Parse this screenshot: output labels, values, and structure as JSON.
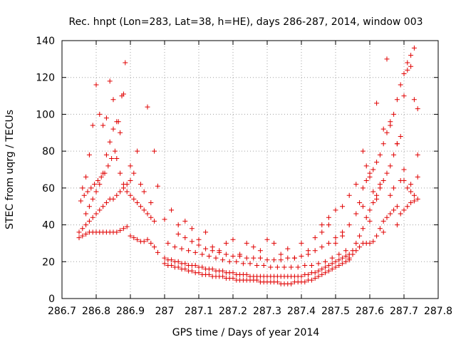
{
  "chart_data": {
    "type": "scatter",
    "title": "Rec. hnpt (Lon=283, Lat=38, h=HE), days 286-287, 2014, window 003",
    "xlabel": "GPS time / Days of year 2014",
    "ylabel": "STEC from uqrg / TECUs",
    "xlim": [
      286.7,
      287.8
    ],
    "ylim": [
      0,
      140
    ],
    "xticks": [
      "286.7",
      "286.8",
      "286.9",
      "287",
      "287.1",
      "287.2",
      "287.3",
      "287.4",
      "287.5",
      "287.6",
      "287.7",
      "287.8"
    ],
    "yticks": [
      "0",
      "20",
      "40",
      "60",
      "80",
      "100",
      "120",
      "140"
    ],
    "grid": true,
    "marker": "+",
    "color": "#e00000",
    "series": [
      {
        "x": [
          286.75,
          286.76,
          286.77,
          286.78,
          286.79,
          286.8,
          286.81,
          286.82,
          286.83,
          286.84,
          286.85,
          286.86,
          286.87,
          286.88,
          286.89,
          286.9,
          286.91,
          286.92,
          286.93,
          286.94,
          286.95,
          286.96,
          286.97,
          286.98
        ],
        "y": [
          33,
          34,
          35,
          36,
          36,
          36,
          36,
          36,
          36,
          36,
          36,
          36,
          37,
          38,
          39,
          34,
          33,
          32,
          31,
          31,
          32,
          30,
          28,
          25
        ]
      },
      {
        "x": [
          286.75,
          286.76,
          286.77,
          286.78,
          286.79,
          286.8,
          286.81,
          286.82,
          286.83,
          286.84,
          286.85,
          286.86,
          286.87,
          286.88,
          286.89,
          286.9
        ],
        "y": [
          36,
          38,
          40,
          42,
          44,
          46,
          48,
          50,
          52,
          54,
          54,
          56,
          58,
          60,
          62,
          64
        ]
      },
      {
        "x": [
          286.755,
          286.765,
          286.775,
          286.785,
          286.795,
          286.805,
          286.815,
          286.825,
          286.835,
          286.845,
          286.855,
          286.865,
          286.875,
          286.885
        ],
        "y": [
          53,
          56,
          58,
          60,
          62,
          64,
          66,
          68,
          72,
          76,
          80,
          96,
          110,
          128
        ]
      },
      {
        "x": [
          286.76,
          286.77,
          286.78,
          286.79,
          286.8,
          286.81,
          286.82,
          286.83,
          286.84,
          286.85,
          286.86,
          286.87,
          286.88
        ],
        "y": [
          60,
          66,
          78,
          94,
          116,
          100,
          94,
          98,
          118,
          108,
          96,
          90,
          111
        ]
      },
      {
        "x": [
          286.77,
          286.78,
          286.79,
          286.8,
          286.81,
          286.82,
          286.83,
          286.84,
          286.85,
          286.86,
          286.87,
          286.88,
          286.89,
          286.9,
          286.91,
          286.92,
          286.93,
          286.94,
          286.95,
          286.96,
          286.97
        ],
        "y": [
          46,
          50,
          54,
          58,
          62,
          68,
          78,
          85,
          92,
          76,
          68,
          62,
          58,
          56,
          54,
          52,
          50,
          48,
          46,
          44,
          42
        ]
      },
      {
        "x": [
          286.9,
          286.91,
          286.92,
          286.93,
          286.94,
          286.95,
          286.96,
          286.97,
          286.98
        ],
        "y": [
          72,
          68,
          80,
          62,
          58,
          104,
          52,
          80,
          61
        ]
      },
      {
        "x": [
          287.0,
          287.01,
          287.02,
          287.03,
          287.04,
          287.05,
          287.06,
          287.07,
          287.08,
          287.09,
          287.1,
          287.11,
          287.12,
          287.13,
          287.14,
          287.15,
          287.16,
          287.17,
          287.18,
          287.19,
          287.2,
          287.21,
          287.22,
          287.23,
          287.24,
          287.25,
          287.26,
          287.27,
          287.28,
          287.29,
          287.3,
          287.31,
          287.32,
          287.33,
          287.34,
          287.35,
          287.36,
          287.37,
          287.38,
          287.39,
          287.4,
          287.41,
          287.42,
          287.43,
          287.44,
          287.45,
          287.46,
          287.47,
          287.48,
          287.49,
          287.5,
          287.51,
          287.52,
          287.53,
          287.54
        ],
        "y": [
          19,
          18,
          18,
          17,
          17,
          16,
          16,
          15,
          15,
          14,
          14,
          13,
          13,
          13,
          12,
          12,
          12,
          12,
          11,
          11,
          11,
          10,
          10,
          10,
          10,
          10,
          10,
          10,
          9,
          9,
          9,
          9,
          9,
          9,
          8,
          8,
          8,
          8,
          9,
          9,
          9,
          9,
          10,
          10,
          11,
          12,
          13,
          14,
          15,
          16,
          17,
          18,
          19,
          20,
          21
        ]
      },
      {
        "x": [
          287.0,
          287.01,
          287.02,
          287.03,
          287.04,
          287.05,
          287.06,
          287.07,
          287.08,
          287.09,
          287.1,
          287.11,
          287.12,
          287.13,
          287.14,
          287.15,
          287.16,
          287.17,
          287.18,
          287.19,
          287.2,
          287.21,
          287.22,
          287.23,
          287.24,
          287.25,
          287.26,
          287.27,
          287.28,
          287.29,
          287.3,
          287.31,
          287.32,
          287.33,
          287.34,
          287.35,
          287.36,
          287.37,
          287.38,
          287.39,
          287.4,
          287.41,
          287.42,
          287.43,
          287.44,
          287.45,
          287.46,
          287.47,
          287.48,
          287.49,
          287.5,
          287.51,
          287.52,
          287.53,
          287.54
        ],
        "y": [
          22,
          21,
          21,
          20,
          20,
          19,
          19,
          18,
          18,
          18,
          17,
          17,
          16,
          16,
          16,
          15,
          15,
          15,
          14,
          14,
          14,
          13,
          13,
          13,
          13,
          12,
          12,
          12,
          12,
          12,
          12,
          12,
          12,
          12,
          12,
          12,
          12,
          12,
          12,
          12,
          12,
          13,
          13,
          14,
          14,
          15,
          16,
          17,
          18,
          19,
          20,
          21,
          22,
          23,
          24
        ]
      },
      {
        "x": [
          287.01,
          287.03,
          287.05,
          287.07,
          287.09,
          287.11,
          287.13,
          287.15,
          287.17,
          287.19,
          287.21,
          287.23,
          287.25,
          287.27,
          287.29,
          287.31,
          287.33,
          287.35,
          287.37,
          287.39,
          287.41,
          287.43,
          287.45,
          287.47,
          287.49,
          287.51,
          287.53
        ],
        "y": [
          30,
          28,
          27,
          26,
          25,
          24,
          23,
          22,
          21,
          20,
          20,
          19,
          19,
          18,
          18,
          17,
          17,
          17,
          17,
          17,
          18,
          18,
          19,
          20,
          22,
          24,
          26
        ]
      },
      {
        "x": [
          287.0,
          287.02,
          287.04,
          287.06,
          287.08,
          287.1,
          287.12,
          287.14,
          287.16,
          287.18,
          287.2,
          287.22,
          287.24,
          287.26,
          287.28,
          287.3,
          287.32,
          287.34,
          287.36,
          287.38,
          287.4,
          287.42,
          287.44,
          287.46,
          287.48,
          287.5,
          287.52,
          287.54
        ],
        "y": [
          43,
          48,
          40,
          42,
          38,
          32,
          36,
          28,
          26,
          30,
          32,
          24,
          30,
          28,
          26,
          32,
          30,
          24,
          27,
          22,
          30,
          26,
          33,
          40,
          44,
          48,
          50,
          56
        ]
      },
      {
        "x": [
          287.04,
          287.06,
          287.08,
          287.1,
          287.12,
          287.14,
          287.16,
          287.18,
          287.2,
          287.22,
          287.24,
          287.26,
          287.28,
          287.3,
          287.32,
          287.34,
          287.36,
          287.38,
          287.4,
          287.42,
          287.44,
          287.46,
          287.48,
          287.5,
          287.52
        ],
        "y": [
          35,
          33,
          31,
          29,
          27,
          26,
          25,
          24,
          23,
          23,
          22,
          22,
          22,
          21,
          21,
          21,
          22,
          22,
          23,
          24,
          26,
          28,
          30,
          33,
          36
        ]
      },
      {
        "x": [
          287.54,
          287.55,
          287.56,
          287.57,
          287.58,
          287.59,
          287.6,
          287.61,
          287.62,
          287.63,
          287.64,
          287.65,
          287.66,
          287.67,
          287.68,
          287.69,
          287.7,
          287.71,
          287.72,
          287.73,
          287.74
        ],
        "y": [
          22,
          24,
          26,
          28,
          30,
          30,
          30,
          31,
          34,
          38,
          42,
          44,
          46,
          48,
          50,
          46,
          48,
          50,
          52,
          53,
          54
        ]
      },
      {
        "x": [
          287.55,
          287.56,
          287.57,
          287.58,
          287.59,
          287.6,
          287.61,
          287.62,
          287.63,
          287.64,
          287.65,
          287.66,
          287.67,
          287.68,
          287.69,
          287.7,
          287.71,
          287.72,
          287.73
        ],
        "y": [
          26,
          30,
          34,
          38,
          44,
          48,
          52,
          56,
          60,
          64,
          68,
          72,
          78,
          84,
          88,
          64,
          60,
          58,
          56
        ]
      },
      {
        "x": [
          287.56,
          287.57,
          287.58,
          287.59,
          287.6,
          287.61,
          287.62,
          287.63,
          287.64,
          287.65,
          287.66,
          287.67,
          287.68,
          287.69,
          287.7,
          287.71,
          287.72,
          287.73,
          287.74
        ],
        "y": [
          46,
          52,
          60,
          64,
          68,
          70,
          74,
          78,
          84,
          90,
          96,
          100,
          108,
          116,
          122,
          128,
          132,
          136,
          103
        ]
      },
      {
        "x": [
          287.58,
          287.59,
          287.6,
          287.61,
          287.62,
          287.63,
          287.64,
          287.65,
          287.66,
          287.67,
          287.68,
          287.69,
          287.7,
          287.71,
          287.72,
          287.73,
          287.74
        ],
        "y": [
          80,
          72,
          66,
          58,
          106,
          62,
          92,
          130,
          94,
          60,
          84,
          64,
          110,
          124,
          126,
          108,
          78
        ]
      },
      {
        "x": [
          287.46,
          287.48,
          287.5,
          287.52,
          287.54,
          287.56,
          287.58,
          287.6,
          287.62,
          287.64,
          287.66,
          287.68,
          287.7,
          287.72,
          287.74
        ],
        "y": [
          36,
          40,
          30,
          34,
          40,
          62,
          50,
          42,
          54,
          36,
          56,
          40,
          70,
          62,
          66
        ]
      }
    ]
  }
}
